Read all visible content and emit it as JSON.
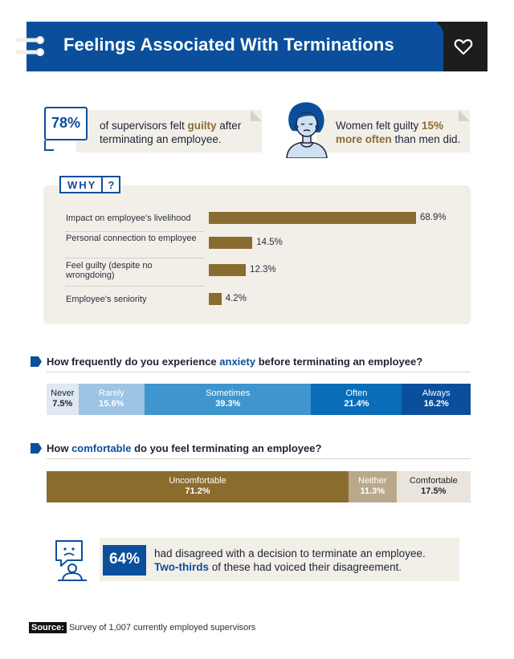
{
  "header": {
    "title": "Feelings Associated With Terminations"
  },
  "stats": {
    "guilt": {
      "percent": "78%",
      "text_before": "of supervisors felt ",
      "highlight": "guilty",
      "text_after": " after terminating an employee."
    },
    "women": {
      "text_before": "Women felt guilty ",
      "highlight": "15% more often",
      "text_after": " than men did."
    }
  },
  "why": {
    "tag_word": "WHY",
    "tag_mark": "?",
    "items": [
      {
        "label": "Impact on employee's livelihood",
        "value": 68.9,
        "value_label": "68.9%"
      },
      {
        "label": "Personal connection to employee",
        "value": 14.5,
        "value_label": "14.5%"
      },
      {
        "label": "Feel guilty (despite no wrongdoing)",
        "value": 12.3,
        "value_label": "12.3%"
      },
      {
        "label": "Employee's seniority",
        "value": 4.2,
        "value_label": "4.2%"
      }
    ]
  },
  "anxiety": {
    "question_before": "How frequently do you experience ",
    "question_highlight": "anxiety",
    "question_after": " before terminating an employee?",
    "segments": [
      {
        "label": "Never",
        "value": 7.5,
        "value_label": "7.5%",
        "color": "#dfe8f3",
        "text_color": "#1d2333"
      },
      {
        "label": "Rarely",
        "value": 15.6,
        "value_label": "15.6%",
        "color": "#9dc4e4",
        "text_color": "#ffffff"
      },
      {
        "label": "Sometimes",
        "value": 39.3,
        "value_label": "39.3%",
        "color": "#3f95cd",
        "text_color": "#ffffff"
      },
      {
        "label": "Often",
        "value": 21.4,
        "value_label": "21.4%",
        "color": "#0a6db8",
        "text_color": "#ffffff"
      },
      {
        "label": "Always",
        "value": 16.2,
        "value_label": "16.2%",
        "color": "#0b4f9c",
        "text_color": "#ffffff"
      }
    ]
  },
  "comfort": {
    "question_before": "How ",
    "question_highlight": "comfortable",
    "question_after": " do you feel terminating an employee?",
    "segments": [
      {
        "label": "Uncomfortable",
        "value": 71.2,
        "value_label": "71.2%",
        "color": "#8a6c2f",
        "text_color": "#ffffff"
      },
      {
        "label": "Neither",
        "value": 11.3,
        "value_label": "11.3%",
        "color": "#b9a98a",
        "text_color": "#ffffff"
      },
      {
        "label": "Comfortable",
        "value": 17.5,
        "value_label": "17.5%",
        "color": "#eae5dc",
        "text_color": "#1d2333"
      }
    ]
  },
  "disagree": {
    "percent": "64%",
    "line1": "had disagreed with a decision to terminate an employee.",
    "highlight": "Two-thirds",
    "line2_after": " of these had voiced their disagreement."
  },
  "source": {
    "tag": "Source:",
    "text": "Survey of 1,007 currently employed supervisors"
  },
  "colors": {
    "brand_blue": "#0b4f9c",
    "brand_brown": "#8a6c2f",
    "card_bg": "#f2efe9",
    "header_dark": "#1d1d1d"
  },
  "icons": [
    "menu-lines-icon",
    "heart-icon",
    "speech-bubble-icon",
    "woman-icon",
    "sad-person-icon"
  ]
}
